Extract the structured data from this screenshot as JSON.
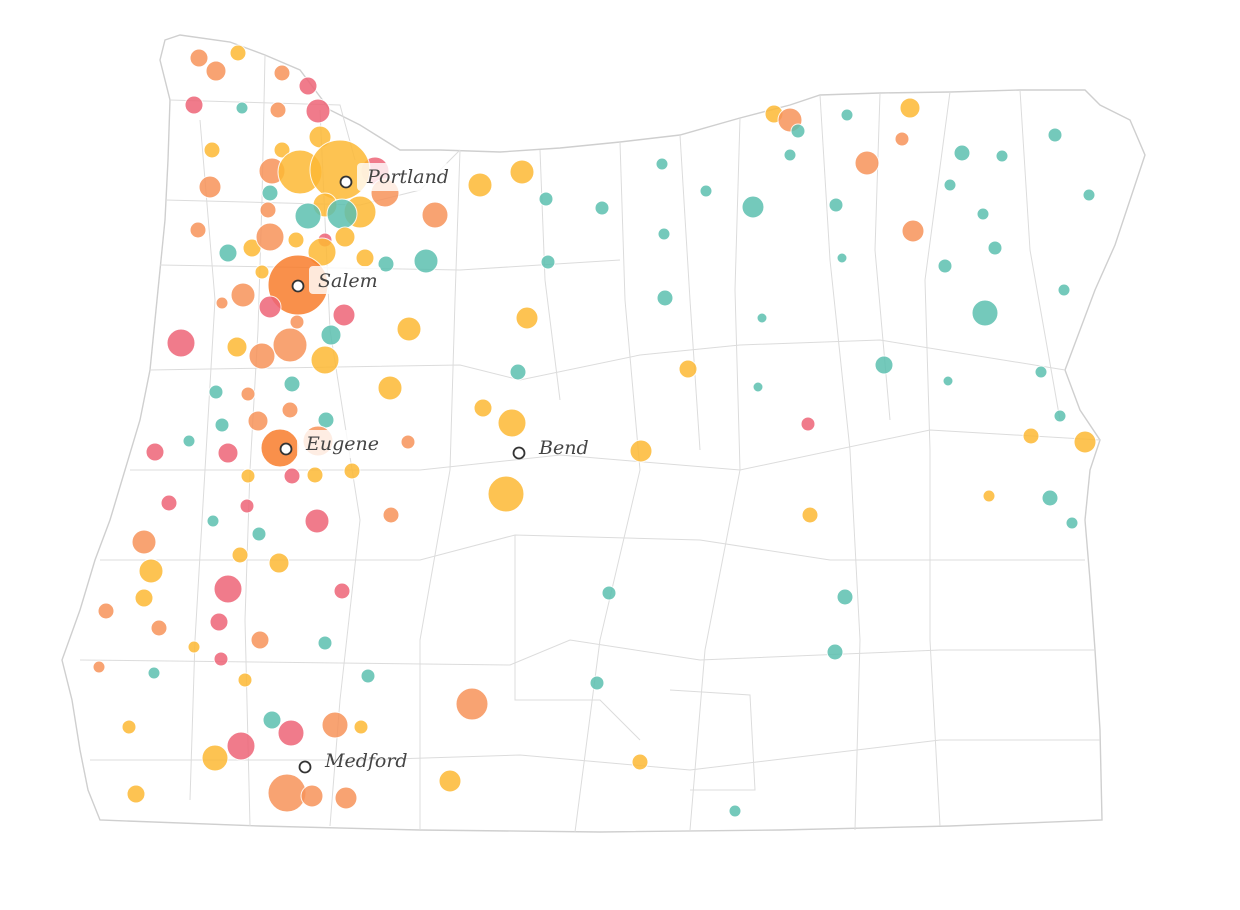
{
  "colors": {
    "red": "#ee6577",
    "orange": "#f7935a",
    "yellow": "#fdb935",
    "teal": "#5cc0b0",
    "dark_orange": "#f97d2c"
  },
  "cities": [
    {
      "label": "Portland"
    },
    {
      "label": "Salem"
    },
    {
      "label": "Eugene"
    },
    {
      "label": "Bend"
    },
    {
      "label": "Medford"
    }
  ]
}
